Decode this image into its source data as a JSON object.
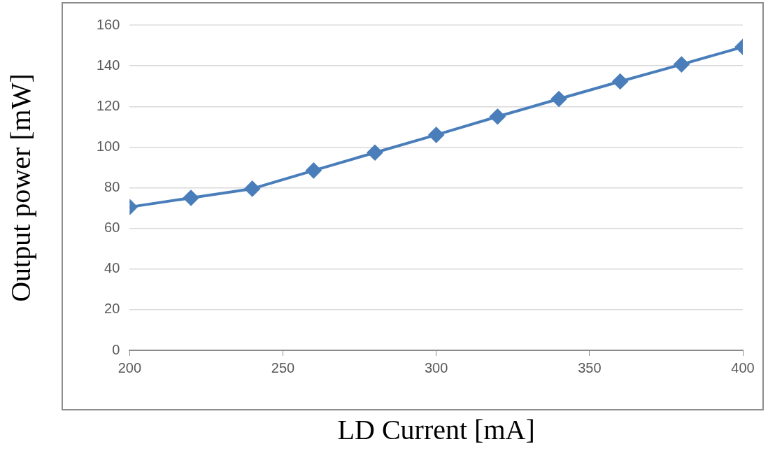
{
  "chart_data": {
    "type": "line",
    "xlabel": "LD Current [mA]",
    "ylabel": "Output power [mW]",
    "x": [
      200,
      220,
      240,
      260,
      280,
      300,
      320,
      340,
      360,
      380,
      400
    ],
    "series": [
      {
        "color": "#4a7ebb",
        "values": [
          70.5,
          75,
          79.5,
          88.5,
          97.3,
          106,
          115,
          123.7,
          132.3,
          140.7,
          149.3
        ]
      }
    ],
    "xlim": [
      200,
      400
    ],
    "xticks": [
      200,
      250,
      300,
      350,
      400
    ],
    "ylim": [
      0,
      160
    ],
    "yticks": [
      0,
      20,
      40,
      60,
      80,
      100,
      120,
      140,
      160
    ],
    "grid": "y",
    "legend": false,
    "marker": "diamond",
    "line_style": "solid"
  }
}
